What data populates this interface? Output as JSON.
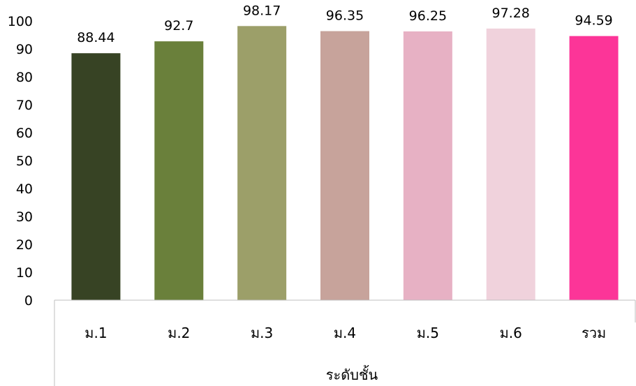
{
  "chart_data": {
    "type": "bar",
    "categories": [
      "ม.1",
      "ม.2",
      "ม.3",
      "ม.4",
      "ม.5",
      "ม.6",
      "รวม"
    ],
    "values": [
      88.44,
      92.7,
      98.17,
      96.35,
      96.25,
      97.28,
      94.59
    ],
    "value_labels": [
      "88.44",
      "92.7",
      "98.17",
      "96.35",
      "96.25",
      "97.28",
      "94.59"
    ],
    "colors": [
      "#374324",
      "#6a803b",
      "#9c9f69",
      "#c7a39b",
      "#e7b1c4",
      "#f0d2dc",
      "#fc3598"
    ],
    "xlabel": "ระดับชั้น",
    "ylabel": "",
    "title": "",
    "ylim": [
      0,
      100
    ],
    "yticks": [
      "0",
      "10",
      "20",
      "30",
      "40",
      "50",
      "60",
      "70",
      "80",
      "90",
      "100"
    ],
    "grid": false,
    "legend": "none"
  }
}
